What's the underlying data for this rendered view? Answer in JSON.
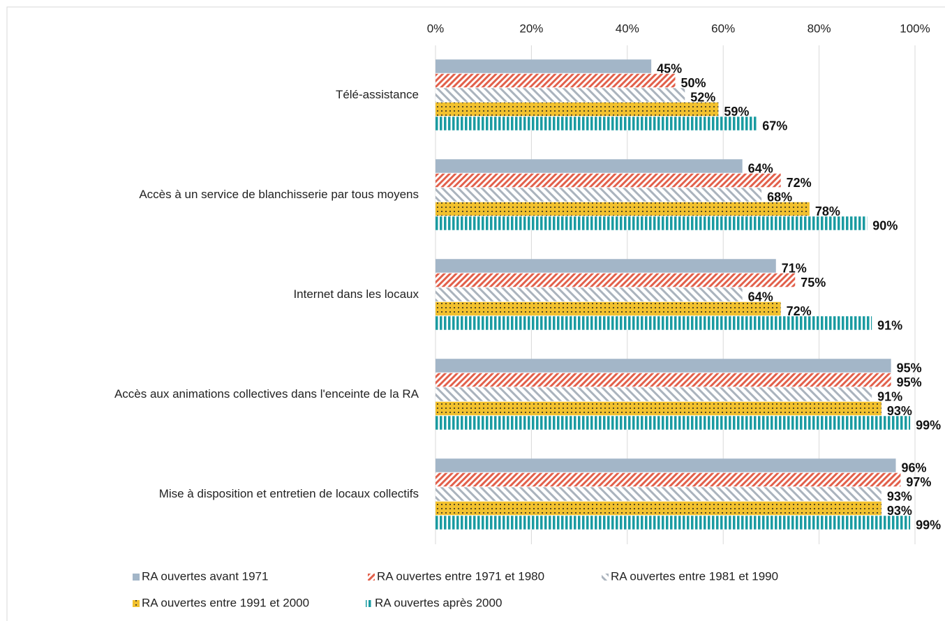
{
  "chart_data": {
    "type": "bar",
    "orientation": "horizontal",
    "categories": [
      "Télé-assistance",
      "Accès à un service de blanchisserie par tous moyens",
      "Internet dans les locaux",
      "Accès aux animations collectives dans l'enceinte de la RA",
      "Mise à disposition et entretien de locaux collectifs"
    ],
    "series": [
      {
        "name": "RA ouvertes avant 1971",
        "color": "#a3b6c8",
        "values": [
          45,
          64,
          71,
          95,
          96
        ],
        "value_labels": [
          "45%",
          "64%",
          "71%",
          "95%",
          "96%"
        ]
      },
      {
        "name": "RA ouvertes entre 1971 et 1980",
        "color": "#e2604b",
        "values": [
          50,
          72,
          75,
          95,
          97
        ],
        "value_labels": [
          "50%",
          "72%",
          "75%",
          "95%",
          "97%"
        ]
      },
      {
        "name": "RA ouvertes entre 1981 et 1990",
        "color": "#aab3bd",
        "values": [
          52,
          68,
          64,
          91,
          93
        ],
        "value_labels": [
          "52%",
          "68%",
          "64%",
          "91%",
          "93%"
        ]
      },
      {
        "name": "RA ouvertes entre 1991 et 2000",
        "color": "#f2c12e",
        "values": [
          59,
          78,
          72,
          93,
          93
        ],
        "value_labels": [
          "59%",
          "78%",
          "72%",
          "93%",
          "93%"
        ]
      },
      {
        "name": "RA ouvertes après 2000",
        "color": "#1a9ba1",
        "values": [
          67,
          90,
          91,
          99,
          99
        ],
        "value_labels": [
          "67%",
          "90%",
          "91%",
          "99%",
          "99%"
        ]
      }
    ],
    "xlim": [
      0,
      100
    ],
    "xticks": [
      {
        "value": 0,
        "label": "0%"
      },
      {
        "value": 20,
        "label": "20%"
      },
      {
        "value": 40,
        "label": "40%"
      },
      {
        "value": 60,
        "label": "60%"
      },
      {
        "value": 80,
        "label": "80%"
      },
      {
        "value": 100,
        "label": "100%"
      }
    ],
    "grid": true,
    "legend": "bottom"
  }
}
